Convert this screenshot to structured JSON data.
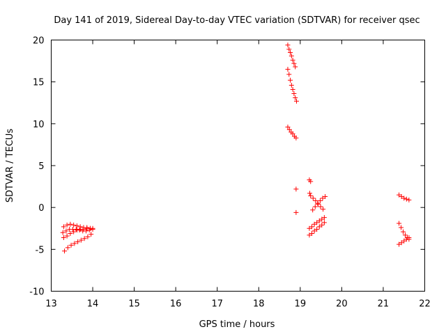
{
  "chart_data": {
    "type": "scatter",
    "title": "Day 141 of 2019, Sidereal Day-to-day VTEC variation (SDTVAR) for receiver qsec",
    "xlabel": "GPS time / hours",
    "ylabel": "SDTVAR / TECUs",
    "xlim": [
      13,
      22
    ],
    "ylim": [
      -10,
      20
    ],
    "xticks": [
      13,
      14,
      15,
      16,
      17,
      18,
      19,
      20,
      21,
      22
    ],
    "yticks": [
      -10,
      -5,
      0,
      5,
      10,
      15,
      20
    ],
    "xtick_labels": [
      "13",
      "14",
      "15",
      "16",
      "17",
      "18",
      "19",
      "20",
      "21",
      "22"
    ],
    "ytick_labels": [
      "-10",
      "-5",
      "0",
      "5",
      "10",
      "15",
      "20"
    ],
    "grid": false,
    "marker": "+",
    "color": "#ff0000",
    "series": [
      {
        "name": "arc-13.3-top",
        "x": [
          13.3,
          13.38,
          13.46,
          13.54,
          13.62,
          13.7,
          13.78,
          13.86,
          13.94,
          14.0
        ],
        "y": [
          -2.3,
          -2.1,
          -2.0,
          -2.1,
          -2.2,
          -2.3,
          -2.4,
          -2.4,
          -2.5,
          -2.5
        ]
      },
      {
        "name": "arc-13.3-mid",
        "x": [
          13.28,
          13.36,
          13.44,
          13.52,
          13.6,
          13.68,
          13.76,
          13.84,
          13.92,
          14.0
        ],
        "y": [
          -3.0,
          -2.8,
          -2.6,
          -2.6,
          -2.6,
          -2.7,
          -2.8,
          -2.8,
          -2.7,
          -2.6
        ]
      },
      {
        "name": "arc-13.3-low",
        "x": [
          13.3,
          13.38,
          13.46,
          13.54,
          13.62,
          13.7,
          13.78,
          13.86,
          13.94
        ],
        "y": [
          -3.6,
          -3.4,
          -3.1,
          -2.9,
          -2.7,
          -2.6,
          -2.6,
          -2.5,
          -2.5
        ]
      },
      {
        "name": "arc-13.3-bottom",
        "x": [
          13.32,
          13.4,
          13.48,
          13.56,
          13.64,
          13.72,
          13.8,
          13.88,
          13.96
        ],
        "y": [
          -5.2,
          -4.8,
          -4.5,
          -4.3,
          -4.1,
          -3.9,
          -3.7,
          -3.5,
          -3.2
        ]
      },
      {
        "name": "arc-18.7-high",
        "x": [
          18.7,
          18.73,
          18.76,
          18.79,
          18.82,
          18.85,
          18.88
        ],
        "y": [
          19.4,
          18.9,
          18.5,
          18.1,
          17.6,
          17.2,
          16.8
        ]
      },
      {
        "name": "arc-18.7-mid",
        "x": [
          18.7,
          18.73,
          18.76,
          18.79,
          18.82,
          18.85,
          18.88,
          18.91
        ],
        "y": [
          16.5,
          15.9,
          15.2,
          14.6,
          14.1,
          13.6,
          13.1,
          12.7
        ]
      },
      {
        "name": "arc-18.7-low",
        "x": [
          18.7,
          18.74,
          18.78,
          18.82,
          18.86,
          18.9
        ],
        "y": [
          9.6,
          9.3,
          9.0,
          8.8,
          8.5,
          8.3
        ]
      },
      {
        "name": "points-18.9",
        "x": [
          18.9,
          18.9
        ],
        "y": [
          2.2,
          -0.6
        ]
      },
      {
        "name": "points-19.2",
        "x": [
          19.22,
          19.25,
          19.23
        ],
        "y": [
          3.3,
          3.1,
          1.7
        ]
      },
      {
        "name": "arc-19.2-rise",
        "x": [
          19.22,
          19.28,
          19.34,
          19.4,
          19.46,
          19.52,
          19.58
        ],
        "y": [
          -2.5,
          -2.3,
          -2.0,
          -1.8,
          -1.6,
          -1.4,
          -1.2
        ]
      },
      {
        "name": "arc-19.2-rise2",
        "x": [
          19.22,
          19.28,
          19.34,
          19.4,
          19.46,
          19.52,
          19.58
        ],
        "y": [
          -3.3,
          -3.1,
          -2.8,
          -2.6,
          -2.3,
          -2.1,
          -1.8
        ]
      },
      {
        "name": "arc-19.2-cross-down",
        "x": [
          19.25,
          19.31,
          19.37,
          19.43,
          19.49,
          19.55
        ],
        "y": [
          1.4,
          1.1,
          0.8,
          0.4,
          0.1,
          -0.2
        ]
      },
      {
        "name": "arc-19.2-cross-up",
        "x": [
          19.3,
          19.36,
          19.42,
          19.48,
          19.54,
          19.6
        ],
        "y": [
          -0.3,
          0.1,
          0.5,
          0.8,
          1.1,
          1.3
        ]
      },
      {
        "name": "arc-21.4-top",
        "x": [
          21.38,
          21.44,
          21.5,
          21.56,
          21.62
        ],
        "y": [
          1.5,
          1.3,
          1.1,
          1.0,
          0.9
        ]
      },
      {
        "name": "arc-21.4-mid",
        "x": [
          21.38,
          21.43,
          21.48,
          21.53,
          21.58,
          21.62
        ],
        "y": [
          -1.9,
          -2.4,
          -2.9,
          -3.3,
          -3.6,
          -3.8
        ]
      },
      {
        "name": "arc-21.4-bottom",
        "x": [
          21.38,
          21.44,
          21.5,
          21.56,
          21.62
        ],
        "y": [
          -4.4,
          -4.2,
          -4.0,
          -3.8,
          -3.6
        ]
      }
    ]
  }
}
